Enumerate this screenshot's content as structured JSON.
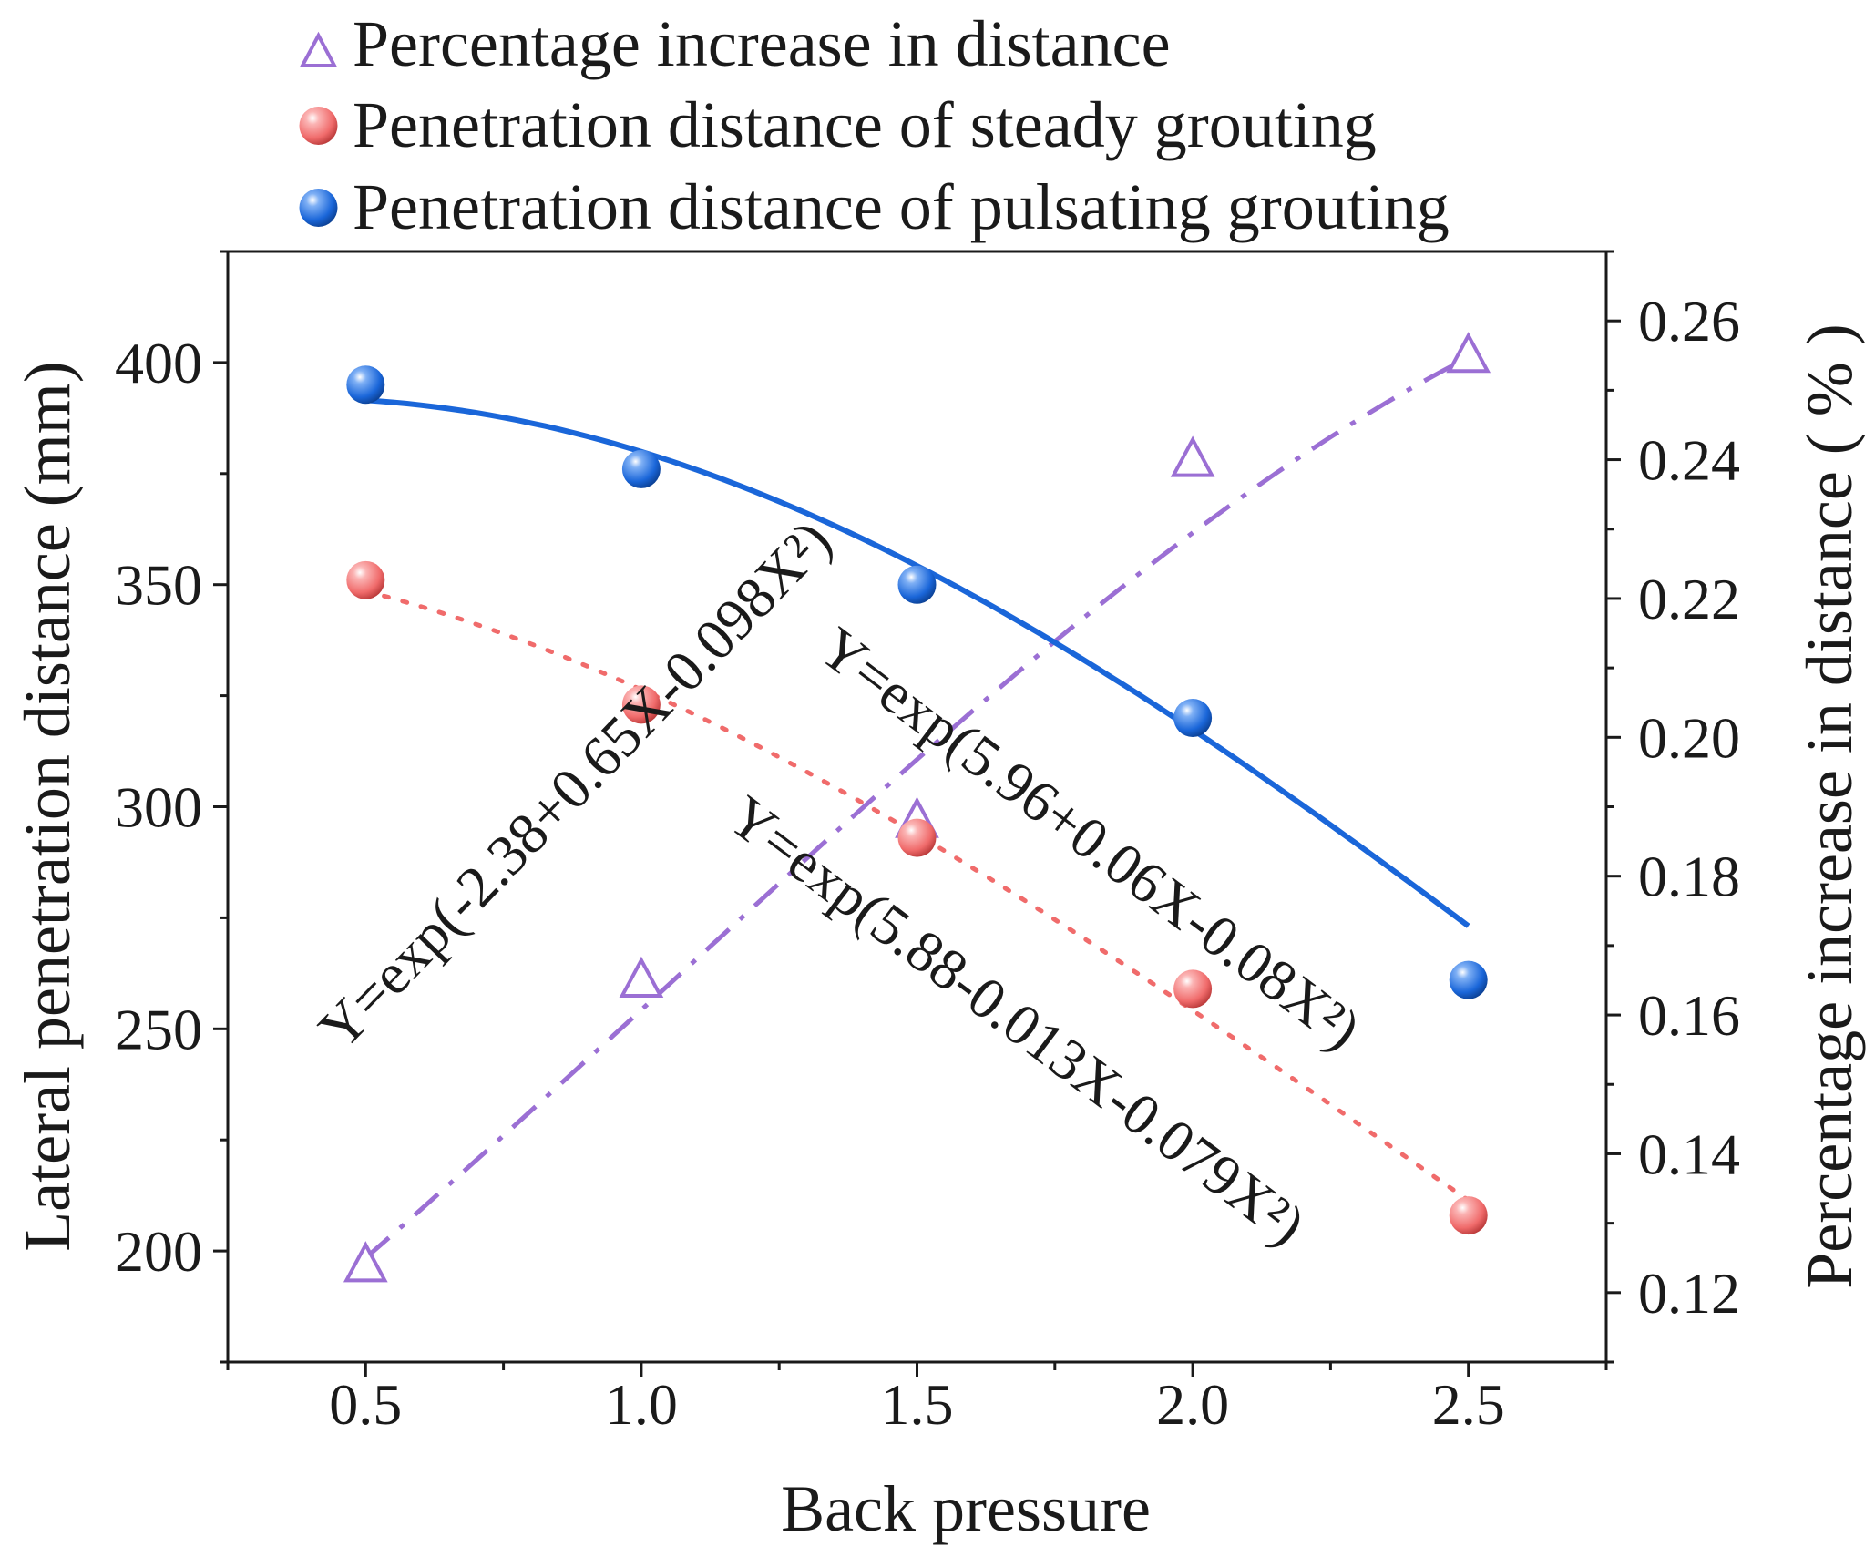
{
  "chart_data": {
    "type": "scatter",
    "title": "",
    "xlabel": "Back pressure",
    "ylabel": "Lateral penetration distance (mm)",
    "y2label": "Percentage increase in distance ( % )",
    "xlim": [
      0.25,
      2.75
    ],
    "ylim": [
      175,
      425
    ],
    "y2lim": [
      0.11,
      0.27
    ],
    "xticks": [
      "0.5",
      "1.0",
      "1.5",
      "2.0",
      "2.5"
    ],
    "yticks": [
      "200",
      "250",
      "300",
      "350",
      "400"
    ],
    "y2ticks": [
      "0.12",
      "0.14",
      "0.16",
      "0.18",
      "0.20",
      "0.22",
      "0.24",
      "0.26"
    ],
    "grid": false,
    "legend_position": "top",
    "series": [
      {
        "name": "Percentage increase in distance",
        "axis": "right",
        "marker": "triangle",
        "color": "#9b6fd4",
        "line_style": "dash-dot",
        "x": [
          0.5,
          1.0,
          1.5,
          2.0,
          2.5
        ],
        "values": [
          0.124,
          0.165,
          0.188,
          0.24,
          0.255
        ],
        "fit": {
          "a": -2.38,
          "b": 0.65,
          "c": -0.098
        },
        "equation": "Y=exp(-2.38+0.65X-0.098X²)"
      },
      {
        "name": "Penetration distance of steady grouting",
        "axis": "left",
        "marker": "circle",
        "color": "#f06b6b",
        "line_style": "dotted",
        "x": [
          0.5,
          1.0,
          1.5,
          2.0,
          2.5
        ],
        "values": [
          351,
          323,
          293,
          259,
          208
        ],
        "fit": {
          "a": 5.88,
          "b": -0.013,
          "c": -0.079
        },
        "equation": "Y=exp(5.88-0.013X-0.079X²)"
      },
      {
        "name": "Penetration distance of pulsating grouting",
        "axis": "left",
        "marker": "circle",
        "color": "#1a66d9",
        "line_style": "solid",
        "x": [
          0.5,
          1.0,
          1.5,
          2.0,
          2.5
        ],
        "values": [
          395,
          376,
          350,
          320,
          261
        ],
        "fit": {
          "a": 5.96,
          "b": 0.06,
          "c": -0.08
        },
        "equation": "Y=exp(5.96+0.06X-0.08X²)"
      }
    ]
  }
}
